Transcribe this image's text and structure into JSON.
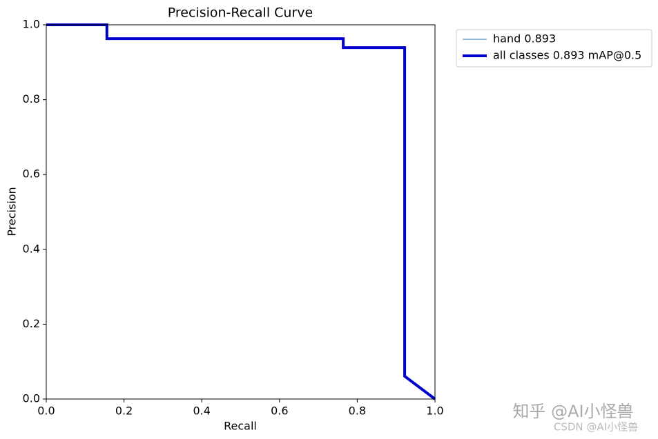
{
  "chart_data": {
    "type": "line",
    "title": "Precision-Recall Curve",
    "x_label": "Recall",
    "y_label": "Precision",
    "x": [
      0,
      0.156,
      0.156,
      0.764,
      0.764,
      0.922,
      0.922,
      1.0
    ],
    "series": [
      {
        "name": "hand 0.893",
        "color": "#1f77b4",
        "width": 1,
        "values": [
          1,
          1,
          0.963,
          0.963,
          0.939,
          0.939,
          0.061,
          0
        ]
      },
      {
        "name": "all classes 0.893 mAP@0.5",
        "color": "#0000cc",
        "width": 4,
        "values": [
          1,
          1,
          0.963,
          0.963,
          0.939,
          0.939,
          0.061,
          0
        ]
      }
    ],
    "xlim": [
      0,
      1
    ],
    "ylim": [
      0,
      1
    ],
    "xticks": [
      {
        "value": 0,
        "label": "0.0"
      },
      0.2,
      0.4,
      0.6,
      0.8,
      {
        "value": 1,
        "label": "1.0"
      }
    ],
    "yticks": [
      {
        "value": 0,
        "label": "0.0"
      },
      0.2,
      0.4,
      0.6,
      0.8,
      {
        "value": 1,
        "label": "1.0"
      }
    ],
    "legend": "upper-right-outside",
    "watermarks": [
      "知乎 @AI小怪兽",
      "CSDN @AI小怪兽"
    ]
  }
}
